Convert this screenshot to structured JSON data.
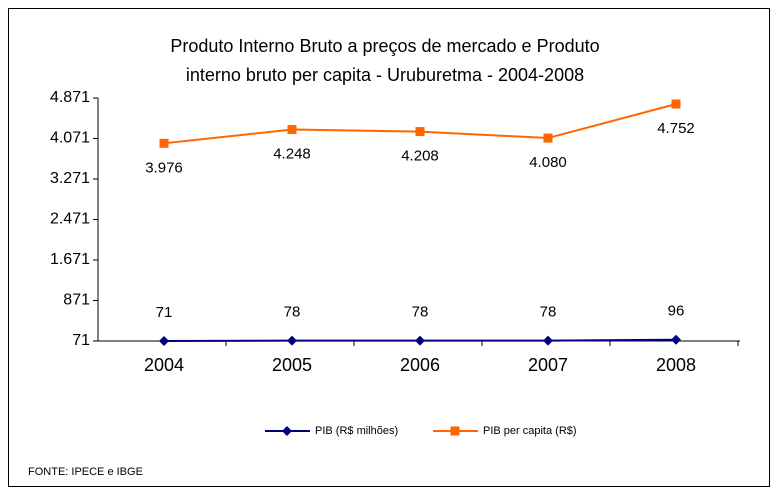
{
  "chart_data": {
    "type": "line",
    "title": "Produto Interno Bruto a preços de mercado  e   Produto",
    "subtitle": "interno bruto per capita - Uruburetma - 2004-2008",
    "categories": [
      "2004",
      "2005",
      "2006",
      "2007",
      "2008"
    ],
    "series": [
      {
        "name": "PIB (R$ milhões)",
        "color": "#000080",
        "marker": "diamond",
        "values": [
          71,
          78,
          78,
          78,
          96
        ],
        "value_labels": [
          "71",
          "78",
          "78",
          "78",
          "96"
        ]
      },
      {
        "name": "PIB per capita (R$)",
        "color": "#ff6600",
        "marker": "square",
        "values": [
          3976,
          4248,
          4208,
          4080,
          4752
        ],
        "value_labels": [
          "3.976",
          "4.248",
          "4.208",
          "4.080",
          "4.752"
        ]
      }
    ],
    "ylim": [
      71,
      4871
    ],
    "yticks": [
      71,
      871,
      {
        "value": 1671,
        "label": "1.671"
      },
      {
        "value": 2471,
        "label": "2.471"
      },
      {
        "value": 3271,
        "label": "3.271"
      },
      {
        "value": 4071,
        "label": "4.071"
      },
      {
        "value": 4871,
        "label": "4.871"
      }
    ],
    "grid": false,
    "legend": "bottom",
    "source": "FONTE: IPECE e IBGE"
  }
}
